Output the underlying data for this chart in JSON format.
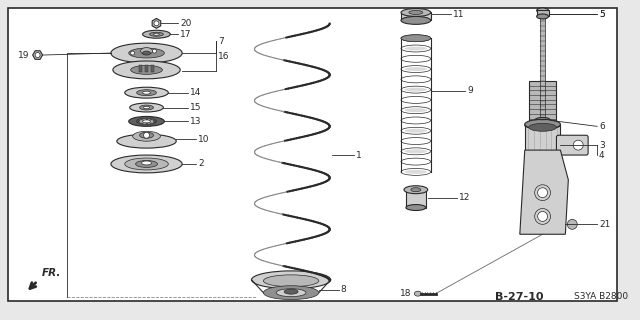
{
  "bg_color": "#e8e8e8",
  "box_color": "#ffffff",
  "line_color": "#2a2a2a",
  "gray_fill": "#b8b8b8",
  "gray_mid": "#909090",
  "gray_dark": "#606060",
  "gray_light": "#d0d0d0",
  "footer_code": "B-27-10",
  "footer_model": "S3YA B2800"
}
